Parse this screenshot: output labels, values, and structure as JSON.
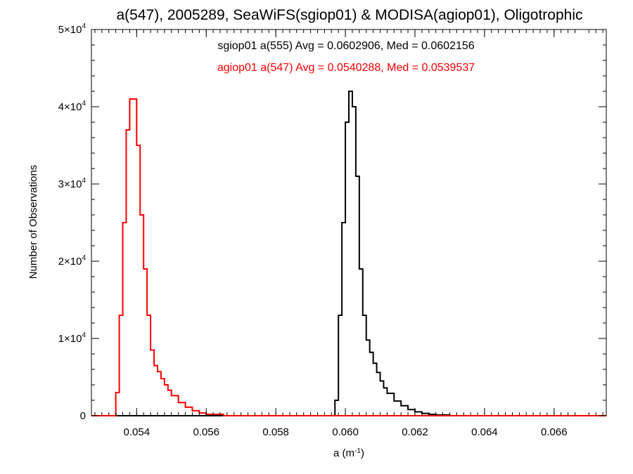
{
  "chart_data": {
    "type": "line",
    "step": true,
    "title": "a(547), 2005289, SeaWiFS(sgiop01) & MODISA(agiop01), Oligotrophic",
    "xlabel": "a (m",
    "xlabel_sup": "-1",
    "xlabel_tail": ")",
    "ylabel": "Number of Observations",
    "xlim": [
      0.0527,
      0.0675
    ],
    "ylim": [
      0,
      50000
    ],
    "grid": false,
    "x_ticks": [
      {
        "value": 0.054,
        "label": "0.054"
      },
      {
        "value": 0.056,
        "label": "0.056"
      },
      {
        "value": 0.058,
        "label": "0.058"
      },
      {
        "value": 0.06,
        "label": "0.060"
      },
      {
        "value": 0.062,
        "label": "0.062"
      },
      {
        "value": 0.064,
        "label": "0.064"
      },
      {
        "value": 0.066,
        "label": "0.066"
      }
    ],
    "y_ticks": [
      {
        "value": 0,
        "mant": "0",
        "exp": ""
      },
      {
        "value": 10000,
        "mant": "1×10",
        "exp": "4"
      },
      {
        "value": 20000,
        "mant": "2×10",
        "exp": "4"
      },
      {
        "value": 30000,
        "mant": "3×10",
        "exp": "4"
      },
      {
        "value": 40000,
        "mant": "4×10",
        "exp": "4"
      },
      {
        "value": 50000,
        "mant": "5×10",
        "exp": "4"
      }
    ],
    "annotations": [
      {
        "text": "sgiop01 a(555) Avg = 0.0602906, Med = 0.0602156",
        "color": "#000000"
      },
      {
        "text": "agiop01 a(547) Avg = 0.0540288, Med = 0.0539537",
        "color": "#ff0000"
      }
    ],
    "series": [
      {
        "color": "#000000",
        "x": [
          0.0527,
          0.0597,
          0.0598,
          0.0599,
          0.06,
          0.0601,
          0.0602,
          0.0603,
          0.0604,
          0.0605,
          0.0606,
          0.0607,
          0.0608,
          0.0609,
          0.061,
          0.0611,
          0.0612,
          0.0614,
          0.0616,
          0.0618,
          0.062,
          0.0622,
          0.0624,
          0.0626,
          0.063,
          0.0675
        ],
        "y": [
          0,
          2000,
          13000,
          25000,
          38000,
          42000,
          40000,
          31000,
          19000,
          13000,
          9800,
          8200,
          6800,
          5600,
          4500,
          3600,
          2900,
          1900,
          1300,
          800,
          500,
          300,
          180,
          100,
          0,
          0
        ]
      },
      {
        "color": "#ff0000",
        "x": [
          0.0527,
          0.0534,
          0.0535,
          0.0536,
          0.0537,
          0.0538,
          0.0539,
          0.054,
          0.0541,
          0.0542,
          0.0543,
          0.0544,
          0.0545,
          0.0546,
          0.0547,
          0.0548,
          0.0549,
          0.055,
          0.0552,
          0.0554,
          0.0556,
          0.0558,
          0.056,
          0.0565,
          0.0675
        ],
        "y": [
          0,
          3000,
          13000,
          25000,
          37000,
          41000,
          41000,
          35000,
          26000,
          19000,
          13000,
          8500,
          6500,
          5700,
          4800,
          4000,
          3300,
          2600,
          1700,
          1100,
          650,
          350,
          180,
          0,
          0
        ]
      }
    ]
  }
}
